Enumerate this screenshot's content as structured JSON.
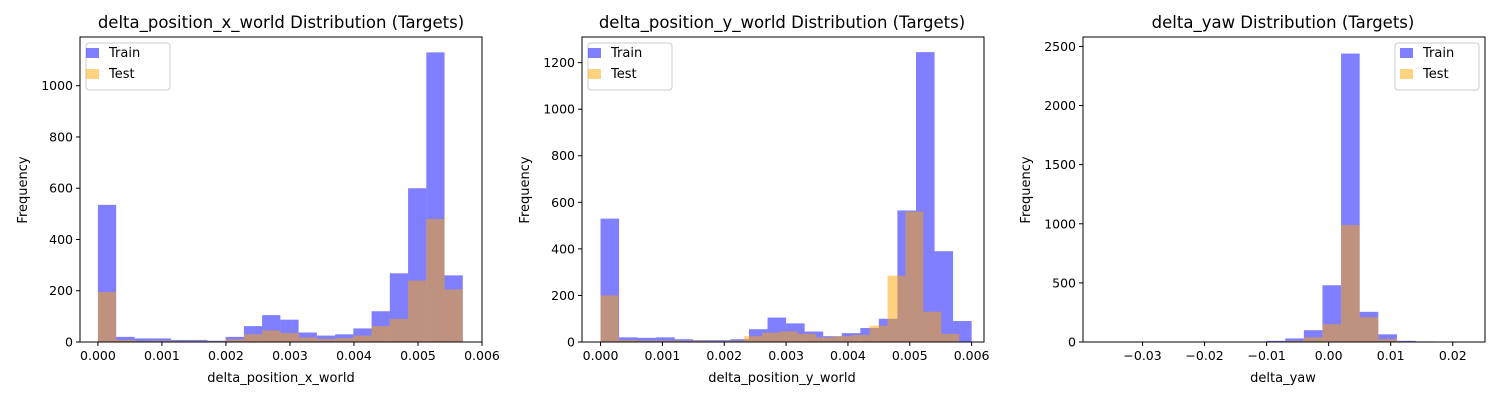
{
  "chart_data": [
    {
      "type": "histogram",
      "title": "delta_position_x_world Distribution (Targets)",
      "xlabel": "delta_position_x_world",
      "ylabel": "Frequency",
      "xlim": [
        -0.00028,
        0.006
      ],
      "ylim": [
        0,
        1190
      ],
      "xticks": [
        0.0,
        0.001,
        0.002,
        0.003,
        0.004,
        0.005,
        0.006
      ],
      "xtick_labels": [
        "0.000",
        "0.001",
        "0.002",
        "0.003",
        "0.004",
        "0.005",
        "0.006"
      ],
      "yticks": [
        0,
        200,
        400,
        600,
        800,
        1000
      ],
      "yticks_labels": [
        "0",
        "200",
        "400",
        "600",
        "800",
        "1000"
      ],
      "legend": "top-left",
      "series": [
        {
          "name": "Train",
          "color": "#0000ff",
          "opacity": 0.5,
          "bin_edges": [
            0.0,
            0.000285,
            0.00057,
            0.000855,
            0.00114,
            0.001425,
            0.00171,
            0.001995,
            0.00228,
            0.002565,
            0.00285,
            0.003135,
            0.00342,
            0.003705,
            0.00399,
            0.004275,
            0.00456,
            0.004845,
            0.00513,
            0.005415,
            0.0057
          ],
          "counts": [
            535,
            20,
            14,
            14,
            8,
            8,
            5,
            20,
            62,
            105,
            87,
            37,
            25,
            30,
            53,
            120,
            268,
            600,
            1130,
            260
          ]
        },
        {
          "name": "Test",
          "color": "#ffa500",
          "opacity": 0.5,
          "bin_edges": [
            0.0,
            0.000285,
            0.00057,
            0.000855,
            0.00114,
            0.001425,
            0.00171,
            0.001995,
            0.00228,
            0.002565,
            0.00285,
            0.003135,
            0.00342,
            0.003705,
            0.00399,
            0.004275,
            0.00456,
            0.004845,
            0.00513,
            0.005415,
            0.0057
          ],
          "counts": [
            195,
            8,
            4,
            5,
            4,
            4,
            3,
            10,
            30,
            45,
            35,
            18,
            12,
            15,
            25,
            62,
            90,
            240,
            480,
            205
          ]
        }
      ]
    },
    {
      "type": "histogram",
      "title": "delta_position_y_world Distribution (Targets)",
      "xlabel": "delta_position_y_world",
      "ylabel": "Frequency",
      "xlim": [
        -0.0003,
        0.0062
      ],
      "ylim": [
        0,
        1310
      ],
      "xticks": [
        0.0,
        0.001,
        0.002,
        0.003,
        0.004,
        0.005,
        0.006
      ],
      "xtick_labels": [
        "0.000",
        "0.001",
        "0.002",
        "0.003",
        "0.004",
        "0.005",
        "0.006"
      ],
      "yticks": [
        0,
        200,
        400,
        600,
        800,
        1000,
        1200
      ],
      "yticks_labels": [
        "0",
        "200",
        "400",
        "600",
        "800",
        "1000",
        "1200"
      ],
      "legend": "top-left",
      "series": [
        {
          "name": "Train",
          "color": "#0000ff",
          "opacity": 0.5,
          "bin_edges": [
            0.0,
            0.0003,
            0.0006,
            0.0009,
            0.0012,
            0.0015,
            0.0018,
            0.0021,
            0.0024,
            0.0027,
            0.003,
            0.0033,
            0.0036,
            0.0039,
            0.0042,
            0.0045,
            0.0048,
            0.0051,
            0.0054,
            0.0057,
            0.006
          ],
          "counts": [
            530,
            20,
            18,
            20,
            12,
            8,
            8,
            12,
            55,
            105,
            80,
            45,
            25,
            38,
            60,
            100,
            565,
            1245,
            390,
            90
          ]
        },
        {
          "name": "Test",
          "color": "#ffa500",
          "opacity": 0.5,
          "bin_edges": [
            0.0,
            0.00029,
            0.00058,
            0.00087,
            0.00116,
            0.00145,
            0.00174,
            0.00203,
            0.00232,
            0.00261,
            0.0029,
            0.00319,
            0.00348,
            0.00377,
            0.00406,
            0.00435,
            0.00464,
            0.00493,
            0.00522,
            0.00551,
            0.0058
          ],
          "counts": [
            200,
            8,
            6,
            6,
            5,
            5,
            4,
            5,
            25,
            40,
            45,
            35,
            20,
            25,
            30,
            70,
            285,
            560,
            130,
            35
          ]
        }
      ]
    },
    {
      "type": "histogram",
      "title": "delta_yaw Distribution (Targets)",
      "xlabel": "delta_yaw",
      "ylabel": "Frequency",
      "xlim": [
        -0.0396,
        0.0252
      ],
      "ylim": [
        0,
        2580
      ],
      "xticks": [
        -0.03,
        -0.02,
        -0.01,
        0.0,
        0.01,
        0.02
      ],
      "xtick_labels": [
        "−0.03",
        "−0.02",
        "−0.01",
        "0.00",
        "0.01",
        "0.02"
      ],
      "yticks": [
        0,
        500,
        1000,
        1500,
        2000,
        2500
      ],
      "yticks_labels": [
        "0",
        "500",
        "1000",
        "1500",
        "2000",
        "2500"
      ],
      "legend": "top-right",
      "series": [
        {
          "name": "Train",
          "color": "#0000ff",
          "opacity": 0.5,
          "bin_edges": [
            -0.037,
            -0.034,
            -0.031,
            -0.028,
            -0.025,
            -0.022,
            -0.019,
            -0.016,
            -0.013,
            -0.01,
            -0.007,
            -0.004,
            -0.001,
            0.002,
            0.005,
            0.008,
            0.011,
            0.014,
            0.017,
            0.02,
            0.023
          ],
          "counts": [
            3,
            3,
            3,
            0,
            0,
            3,
            3,
            3,
            3,
            10,
            30,
            100,
            480,
            2440,
            255,
            65,
            10,
            5,
            3,
            3
          ]
        },
        {
          "name": "Test",
          "color": "#ffa500",
          "opacity": 0.5,
          "bin_edges": [
            -0.037,
            -0.034,
            -0.031,
            -0.028,
            -0.025,
            -0.022,
            -0.019,
            -0.016,
            -0.013,
            -0.01,
            -0.007,
            -0.004,
            -0.001,
            0.002,
            0.005,
            0.008,
            0.011,
            0.014,
            0.017,
            0.02,
            0.023
          ],
          "counts": [
            0,
            0,
            0,
            0,
            0,
            0,
            0,
            0,
            0,
            3,
            10,
            40,
            150,
            990,
            210,
            25,
            5,
            3,
            3,
            3
          ]
        }
      ]
    }
  ]
}
